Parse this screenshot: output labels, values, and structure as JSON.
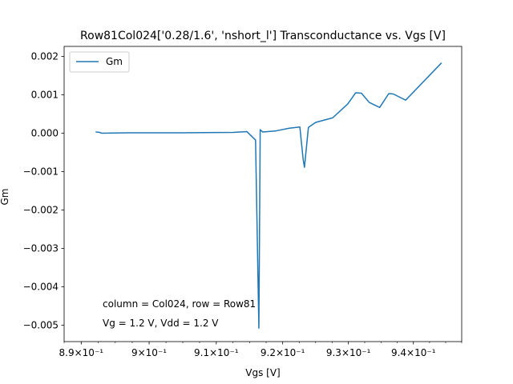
{
  "chart_data": {
    "type": "line",
    "title": "Row81Col024['0.28/1.6', 'nshort_l'] Transconductance vs. Vgs [V]",
    "xlabel": "Vgs [V]",
    "ylabel": "Gm",
    "xscale": "log",
    "xlim": [
      0.8875,
      0.9475
    ],
    "ylim": [
      -0.00543,
      0.00226
    ],
    "grid": false,
    "legend": "top-left",
    "x_ticks": [
      {
        "value": 0.89,
        "label": "8.9×10⁻¹"
      },
      {
        "value": 0.9,
        "label": "9×10⁻¹"
      },
      {
        "value": 0.91,
        "label": "9.1×10⁻¹"
      },
      {
        "value": 0.92,
        "label": "9.2×10⁻¹"
      },
      {
        "value": 0.93,
        "label": "9.3×10⁻¹"
      },
      {
        "value": 0.94,
        "label": "9.4×10⁻¹"
      }
    ],
    "y_ticks": [
      {
        "value": 0.002,
        "label": "0.002"
      },
      {
        "value": 0.001,
        "label": "0.001"
      },
      {
        "value": 0.0,
        "label": "0.000"
      },
      {
        "value": -0.001,
        "label": "−0.001"
      },
      {
        "value": -0.002,
        "label": "−0.002"
      },
      {
        "value": -0.003,
        "label": "−0.003"
      },
      {
        "value": -0.004,
        "label": "−0.004"
      },
      {
        "value": -0.005,
        "label": "−0.005"
      }
    ],
    "series": [
      {
        "name": "Gm",
        "color": "#1f77b4",
        "x": [
          0.8922,
          0.8927,
          0.893,
          0.897,
          0.905,
          0.9125,
          0.9146,
          0.9159,
          0.9164,
          0.9166,
          0.917,
          0.919,
          0.921,
          0.9226,
          0.9231,
          0.9233,
          0.9239,
          0.925,
          0.9276,
          0.9299,
          0.9311,
          0.932,
          0.9332,
          0.9348,
          0.9362,
          0.9369,
          0.9388,
          0.9443
        ],
        "y": [
          3e-05,
          2e-05,
          0.0,
          1e-05,
          1e-05,
          2e-05,
          4e-05,
          -0.00018,
          -0.00508,
          9e-05,
          3e-05,
          6e-05,
          0.00013,
          0.00016,
          -0.00068,
          -0.00089,
          0.00015,
          0.00028,
          0.0004,
          0.00076,
          0.00105,
          0.00104,
          0.0008,
          0.00067,
          0.00103,
          0.00102,
          0.00086,
          0.00182
        ]
      }
    ],
    "annotations": [
      "column = Col024, row = Row81",
      "Vg = 1.2 V, Vdd = 1.2 V"
    ]
  }
}
